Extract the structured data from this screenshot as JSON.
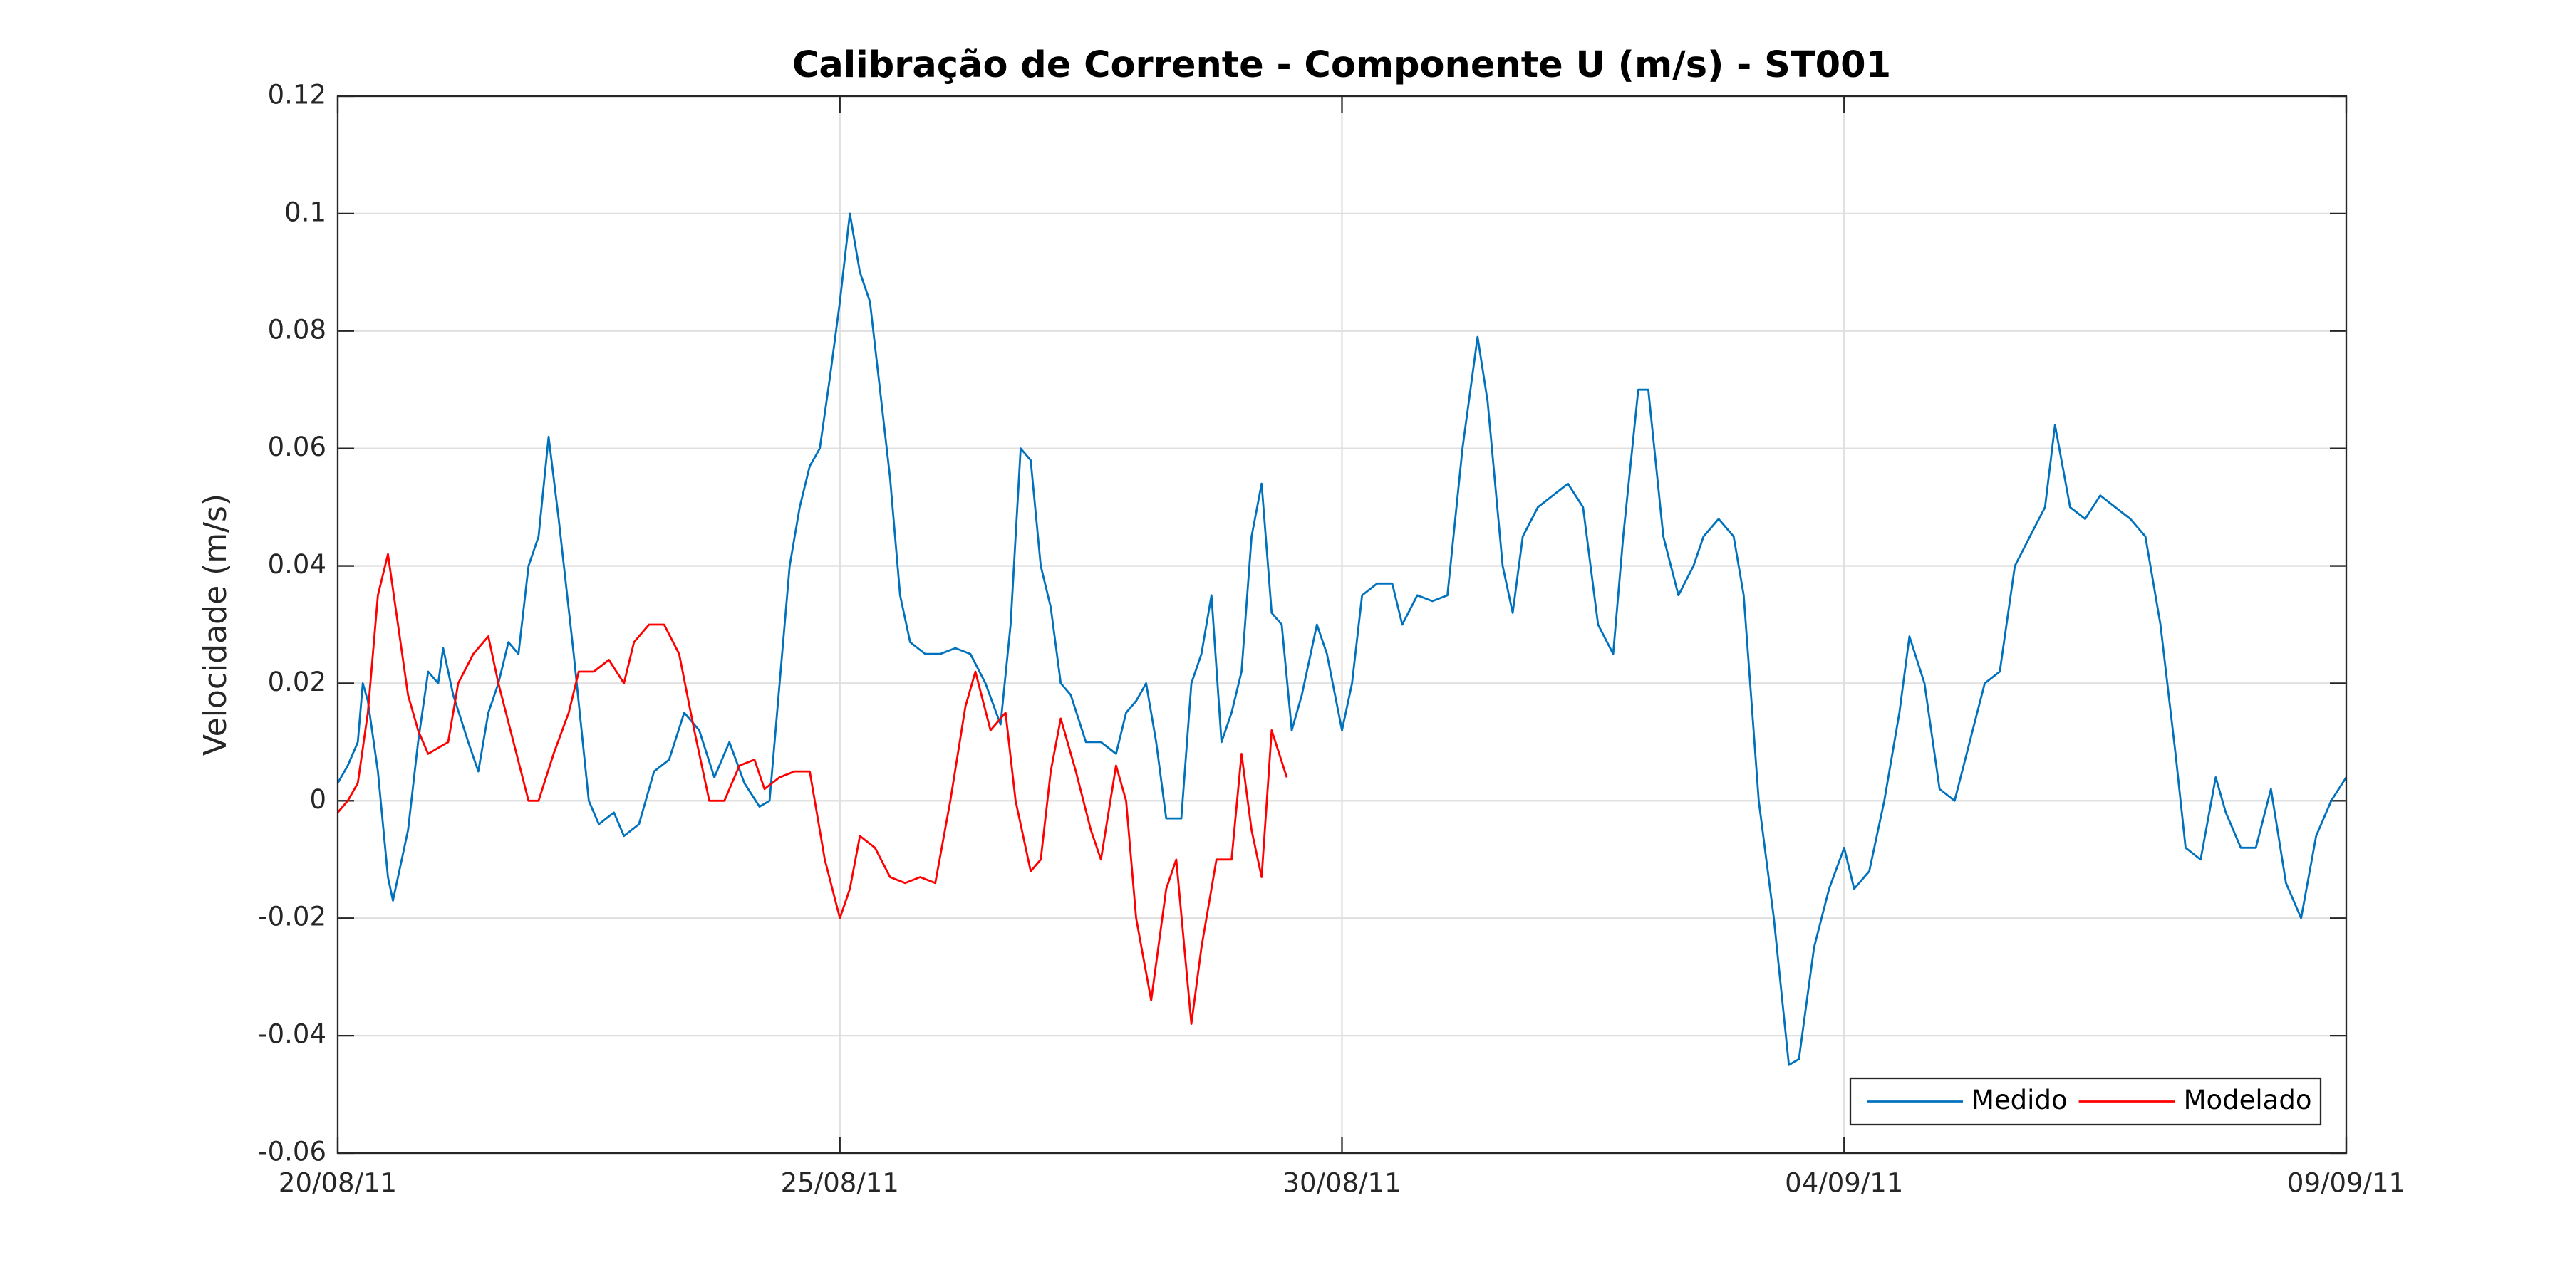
{
  "chart_data": {
    "type": "line",
    "title": "Calibração de Corrente - Componente U (m/s) - ST001",
    "y_label": "Velocidade (m/s)",
    "xlim": [
      0,
      20
    ],
    "xticks": [
      {
        "value": 0,
        "label": "20/08/11"
      },
      {
        "value": 5,
        "label": "25/08/11"
      },
      {
        "value": 10,
        "label": "30/08/11"
      },
      {
        "value": 15,
        "label": "04/09/11"
      },
      {
        "value": 20,
        "label": "09/09/11"
      }
    ],
    "ylim": [
      -0.06,
      0.12
    ],
    "yticks": [
      -0.06,
      -0.04,
      -0.02,
      0,
      0.02,
      0.04,
      0.06,
      0.08,
      0.1,
      0.12
    ],
    "grid": true,
    "legend": "lower right",
    "series": [
      {
        "name": "Medido",
        "color": "#0072bd",
        "x": [
          0,
          0.1,
          0.2,
          0.25,
          0.3,
          0.4,
          0.5,
          0.55,
          0.7,
          0.8,
          0.9,
          1.0,
          1.05,
          1.15,
          1.3,
          1.4,
          1.5,
          1.6,
          1.7,
          1.8,
          1.9,
          2.0,
          2.1,
          2.2,
          2.35,
          2.5,
          2.6,
          2.75,
          2.85,
          3.0,
          3.15,
          3.3,
          3.45,
          3.6,
          3.75,
          3.9,
          4.05,
          4.2,
          4.3,
          4.4,
          4.5,
          4.6,
          4.7,
          4.8,
          4.9,
          5.0,
          5.1,
          5.2,
          5.3,
          5.4,
          5.5,
          5.6,
          5.7,
          5.85,
          6.0,
          6.15,
          6.3,
          6.45,
          6.6,
          6.7,
          6.8,
          6.9,
          7.0,
          7.1,
          7.2,
          7.3,
          7.45,
          7.6,
          7.75,
          7.85,
          7.95,
          8.05,
          8.15,
          8.25,
          8.4,
          8.5,
          8.6,
          8.7,
          8.8,
          8.9,
          9.0,
          9.1,
          9.2,
          9.3,
          9.4,
          9.5,
          9.6,
          9.75,
          9.85,
          10.0,
          10.1,
          10.2,
          10.35,
          10.5,
          10.6,
          10.75,
          10.9,
          11.05,
          11.2,
          11.35,
          11.45,
          11.6,
          11.7,
          11.8,
          11.95,
          12.1,
          12.25,
          12.4,
          12.55,
          12.7,
          12.8,
          12.95,
          13.05,
          13.2,
          13.35,
          13.5,
          13.6,
          13.75,
          13.9,
          14.0,
          14.15,
          14.3,
          14.45,
          14.55,
          14.7,
          14.85,
          15.0,
          15.1,
          15.25,
          15.4,
          15.55,
          15.65,
          15.8,
          15.95,
          16.1,
          16.25,
          16.4,
          16.55,
          16.7,
          16.85,
          17.0,
          17.1,
          17.25,
          17.4,
          17.55,
          17.7,
          17.85,
          18.0,
          18.15,
          18.3,
          18.4,
          18.55,
          18.7,
          18.8,
          18.95,
          19.1,
          19.25,
          19.4,
          19.55,
          19.7,
          19.85,
          20.0
        ],
        "values": [
          0.003,
          0.006,
          0.01,
          0.02,
          0.017,
          0.005,
          -0.013,
          -0.017,
          -0.005,
          0.01,
          0.022,
          0.02,
          0.026,
          0.018,
          0.01,
          0.005,
          0.015,
          0.02,
          0.027,
          0.025,
          0.04,
          0.045,
          0.062,
          0.048,
          0.025,
          0.0,
          -0.004,
          -0.002,
          -0.006,
          -0.004,
          0.005,
          0.007,
          0.015,
          0.012,
          0.004,
          0.01,
          0.003,
          -0.001,
          0.0,
          0.02,
          0.04,
          0.05,
          0.057,
          0.06,
          0.072,
          0.085,
          0.1,
          0.09,
          0.085,
          0.07,
          0.055,
          0.035,
          0.027,
          0.025,
          0.025,
          0.026,
          0.025,
          0.02,
          0.013,
          0.03,
          0.06,
          0.058,
          0.04,
          0.033,
          0.02,
          0.018,
          0.01,
          0.01,
          0.008,
          0.015,
          0.017,
          0.02,
          0.01,
          -0.003,
          -0.003,
          0.02,
          0.025,
          0.035,
          0.01,
          0.015,
          0.022,
          0.045,
          0.054,
          0.032,
          0.03,
          0.012,
          0.018,
          0.03,
          0.025,
          0.012,
          0.02,
          0.035,
          0.037,
          0.037,
          0.03,
          0.035,
          0.034,
          0.035,
          0.06,
          0.079,
          0.068,
          0.04,
          0.032,
          0.045,
          0.05,
          0.052,
          0.054,
          0.05,
          0.03,
          0.025,
          0.045,
          0.07,
          0.07,
          0.045,
          0.035,
          0.04,
          0.045,
          0.048,
          0.045,
          0.035,
          0.0,
          -0.02,
          -0.045,
          -0.044,
          -0.025,
          -0.015,
          -0.008,
          -0.015,
          -0.012,
          0.0,
          0.015,
          0.028,
          0.02,
          0.002,
          0.0,
          0.01,
          0.02,
          0.022,
          0.04,
          0.045,
          0.05,
          0.064,
          0.05,
          0.048,
          0.052,
          0.05,
          0.048,
          0.045,
          0.03,
          0.008,
          -0.008,
          -0.01,
          0.004,
          -0.002,
          -0.008,
          -0.008,
          0.002,
          -0.014,
          -0.02,
          -0.006,
          0.0,
          0.004
        ]
      },
      {
        "name": "Modelado",
        "color": "#ff0000",
        "x": [
          0,
          0.1,
          0.2,
          0.3,
          0.4,
          0.5,
          0.6,
          0.7,
          0.8,
          0.9,
          1.0,
          1.1,
          1.2,
          1.35,
          1.5,
          1.6,
          1.75,
          1.9,
          2.0,
          2.15,
          2.3,
          2.4,
          2.55,
          2.7,
          2.85,
          2.95,
          3.1,
          3.25,
          3.4,
          3.55,
          3.7,
          3.85,
          4.0,
          4.15,
          4.25,
          4.4,
          4.55,
          4.7,
          4.85,
          5.0,
          5.1,
          5.2,
          5.35,
          5.5,
          5.65,
          5.8,
          5.95,
          6.1,
          6.25,
          6.35,
          6.5,
          6.65,
          6.75,
          6.9,
          7.0,
          7.1,
          7.2,
          7.35,
          7.5,
          7.6,
          7.75,
          7.85,
          7.95,
          8.1,
          8.25,
          8.35,
          8.5,
          8.6,
          8.75,
          8.9,
          9.0,
          9.1,
          9.2,
          9.3,
          9.45
        ],
        "values": [
          -0.002,
          0.0,
          0.003,
          0.015,
          0.035,
          0.042,
          0.03,
          0.018,
          0.012,
          0.008,
          0.009,
          0.01,
          0.02,
          0.025,
          0.028,
          0.02,
          0.01,
          0.0,
          0.0,
          0.008,
          0.015,
          0.022,
          0.022,
          0.024,
          0.02,
          0.027,
          0.03,
          0.03,
          0.025,
          0.012,
          0.0,
          0.0,
          0.006,
          0.007,
          0.002,
          0.004,
          0.005,
          0.005,
          -0.01,
          -0.02,
          -0.015,
          -0.006,
          -0.008,
          -0.013,
          -0.014,
          -0.013,
          -0.014,
          0.0,
          0.016,
          0.022,
          0.012,
          0.015,
          0.0,
          -0.012,
          -0.01,
          0.005,
          0.014,
          0.005,
          -0.005,
          -0.01,
          0.006,
          0.0,
          -0.02,
          -0.034,
          -0.015,
          -0.01,
          -0.038,
          -0.025,
          -0.01,
          -0.01,
          0.008,
          -0.005,
          -0.013,
          0.012,
          0.004
        ]
      }
    ]
  }
}
